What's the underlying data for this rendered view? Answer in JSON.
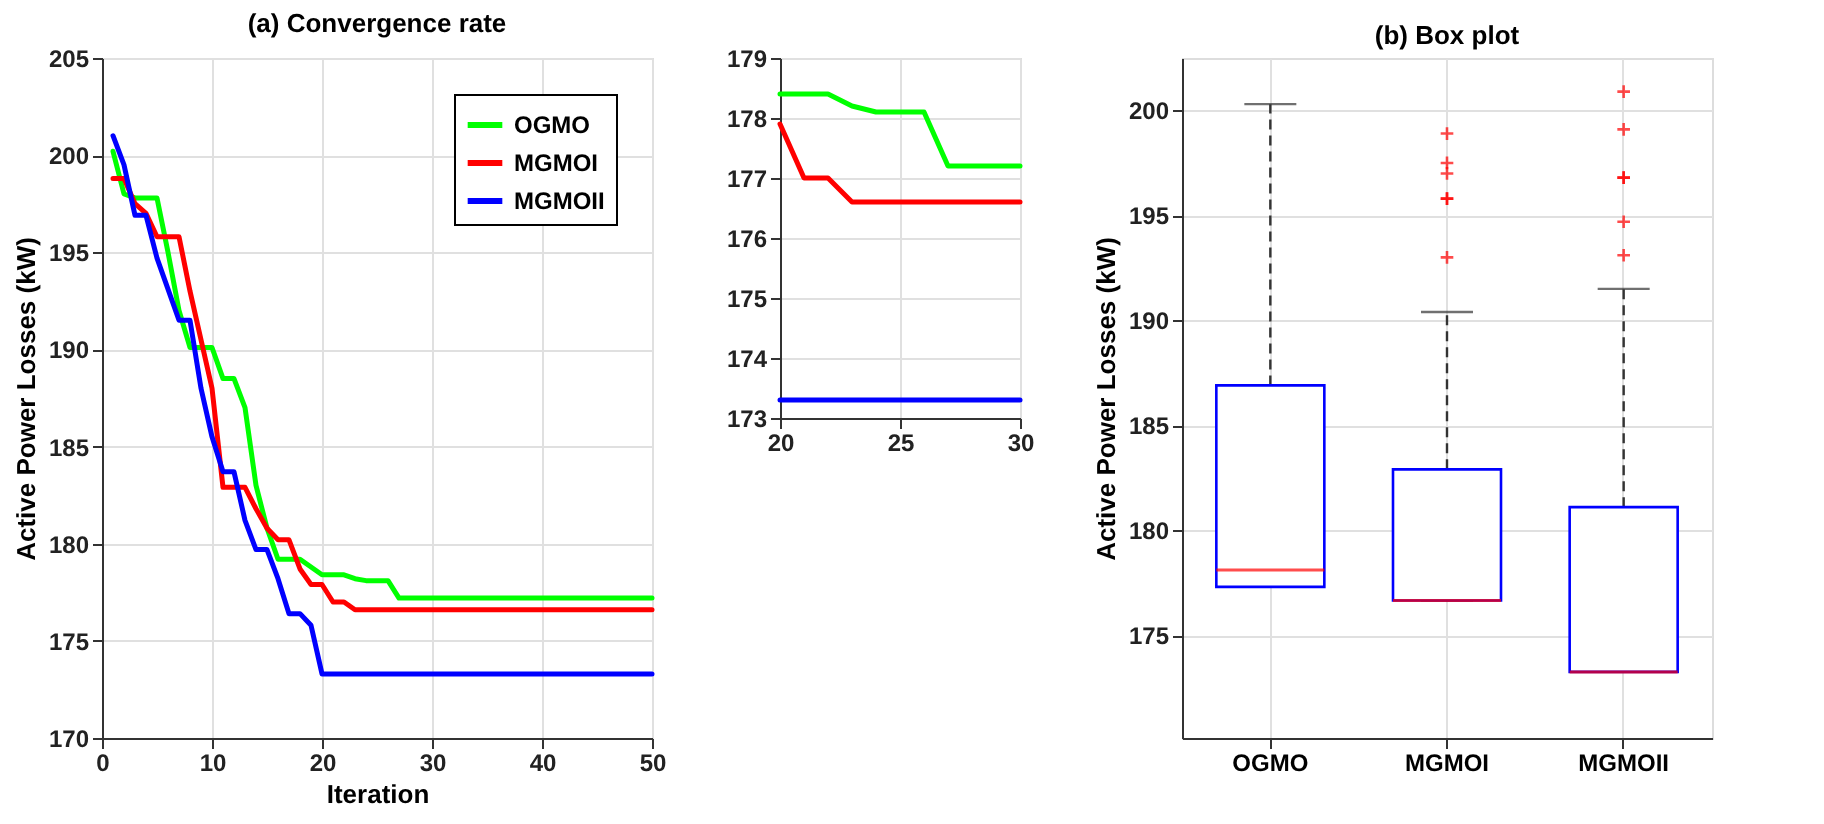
{
  "chart_data": [
    {
      "type": "line",
      "title": "(a) Convergence rate",
      "xlabel": "Iteration",
      "ylabel": "Active Power Losses (kW)",
      "x": [
        1,
        2,
        3,
        4,
        5,
        6,
        7,
        8,
        9,
        10,
        11,
        12,
        13,
        14,
        15,
        16,
        17,
        18,
        19,
        20,
        21,
        22,
        23,
        24,
        25,
        26,
        27,
        28,
        29,
        30,
        31,
        32,
        33,
        34,
        35,
        36,
        37,
        38,
        39,
        40,
        41,
        42,
        43,
        44,
        45,
        46,
        47,
        48,
        49,
        50
      ],
      "series": [
        {
          "name": "OGMO",
          "color": "#00ff00",
          "values": [
            200.2,
            198,
            197.8,
            197.8,
            197.8,
            195,
            192,
            190.1,
            190.1,
            190.1,
            188.5,
            188.5,
            187,
            183,
            180.8,
            179.2,
            179.2,
            179.2,
            178.8,
            178.4,
            178.4,
            178.4,
            178.2,
            178.1,
            178.1,
            178.1,
            177.2,
            177.2,
            177.2,
            177.2,
            177.2,
            177.2,
            177.2,
            177.2,
            177.2,
            177.2,
            177.2,
            177.2,
            177.2,
            177.2,
            177.2,
            177.2,
            177.2,
            177.2,
            177.2,
            177.2,
            177.2,
            177.2,
            177.2,
            177.2
          ]
        },
        {
          "name": "MGMOI",
          "color": "#ff0000",
          "values": [
            198.8,
            198.8,
            197.5,
            197,
            195.8,
            195.8,
            195.8,
            193,
            190.5,
            188,
            182.9,
            182.9,
            182.9,
            181.8,
            180.8,
            180.2,
            180.2,
            178.7,
            177.9,
            177.9,
            177,
            177,
            176.6,
            176.6,
            176.6,
            176.6,
            176.6,
            176.6,
            176.6,
            176.6,
            176.6,
            176.6,
            176.6,
            176.6,
            176.6,
            176.6,
            176.6,
            176.6,
            176.6,
            176.6,
            176.6,
            176.6,
            176.6,
            176.6,
            176.6,
            176.6,
            176.6,
            176.6,
            176.6,
            176.6
          ]
        },
        {
          "name": "MGMOII",
          "color": "#0000ff",
          "values": [
            201,
            199.5,
            196.9,
            196.9,
            194.7,
            193.1,
            191.5,
            191.5,
            188,
            185.5,
            183.7,
            183.7,
            181.2,
            179.7,
            179.7,
            178.2,
            176.4,
            176.4,
            175.8,
            173.3,
            173.3,
            173.3,
            173.3,
            173.3,
            173.3,
            173.3,
            173.3,
            173.3,
            173.3,
            173.3,
            173.3,
            173.3,
            173.3,
            173.3,
            173.3,
            173.3,
            173.3,
            173.3,
            173.3,
            173.3,
            173.3,
            173.3,
            173.3,
            173.3,
            173.3,
            173.3,
            173.3,
            173.3,
            173.3,
            173.3
          ]
        }
      ],
      "xlim": [
        0,
        50
      ],
      "xticks": [
        0,
        10,
        20,
        30,
        40,
        50
      ],
      "ylim": [
        170,
        205
      ],
      "yticks": [
        170,
        175,
        180,
        185,
        190,
        195,
        200,
        205
      ],
      "grid": true,
      "legend": "top right",
      "line_style": "solid"
    },
    {
      "type": "line",
      "x": [
        20,
        21,
        22,
        23,
        24,
        25,
        26,
        27,
        28,
        29,
        30
      ],
      "series": [
        {
          "color": "#00ff00",
          "values": [
            178.4,
            178.4,
            178.4,
            178.2,
            178.1,
            178.1,
            178.1,
            177.2,
            177.2,
            177.2,
            177.2
          ]
        },
        {
          "color": "#ff0000",
          "values": [
            177.9,
            177,
            177,
            176.6,
            176.6,
            176.6,
            176.6,
            176.6,
            176.6,
            176.6,
            176.6
          ]
        },
        {
          "color": "#0000ff",
          "values": [
            173.3,
            173.3,
            173.3,
            173.3,
            173.3,
            173.3,
            173.3,
            173.3,
            173.3,
            173.3,
            173.3
          ]
        }
      ],
      "xlim": [
        20,
        30
      ],
      "xticks": [
        20,
        25,
        30
      ],
      "ylim": [
        173,
        179
      ],
      "yticks": [
        173,
        174,
        175,
        176,
        177,
        178,
        179
      ],
      "grid": true,
      "line_style": "solid"
    },
    {
      "type": "box",
      "title": "(b) Box plot",
      "ylabel": "Active Power Losses (kW)",
      "categories": [
        "OGMO",
        "MGMOI",
        "MGMOII"
      ],
      "series": [
        {
          "color": "#0000ff",
          "boxes": [
            {
              "low": 177.3,
              "q1": 177.3,
              "median": 178.1,
              "q3": 186.9,
              "high": 200.3
            },
            {
              "low": 176.65,
              "q1": 176.65,
              "median": 176.65,
              "q3": 182.9,
              "high": 190.4,
              "outliers": [
                193,
                195.8,
                195.8,
                197,
                197.5,
                198.9
              ]
            },
            {
              "low": 173.25,
              "q1": 173.25,
              "median": 173.25,
              "q3": 181.1,
              "high": 191.5,
              "outliers": [
                193.1,
                194.7,
                196.8,
                196.8,
                199.1,
                200.9
              ]
            }
          ]
        }
      ],
      "ylim": [
        170.1,
        202.5
      ],
      "yticks": [
        175,
        180,
        185,
        190,
        195,
        200
      ],
      "grid": true
    }
  ]
}
